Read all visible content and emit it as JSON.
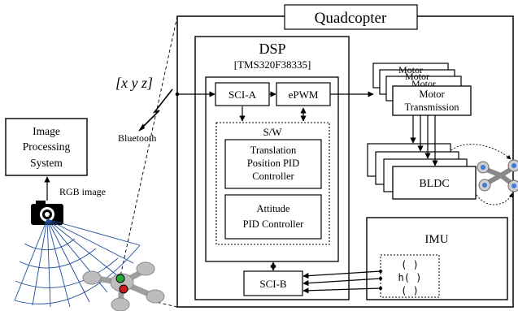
{
  "title": "Quadcopter",
  "dsp": {
    "title": "DSP",
    "model": "[TMS320F38335]",
    "sci_a": "SCI-A",
    "epwm": "ePWM",
    "sw_label": "S/W",
    "translation_controller": [
      "Translation",
      "Position PID",
      "Controller"
    ],
    "attitude_controller": [
      "Attitude",
      "PID Controller"
    ],
    "sci_b": "SCI-B"
  },
  "motor_stack": {
    "back_labels": [
      "Motor",
      "Motor",
      "Motor"
    ],
    "front_label": [
      "Motor",
      "Transmission"
    ]
  },
  "bldc": "BLDC",
  "imu": {
    "title": "IMU",
    "signals": [
      "( )",
      "h( )",
      "( )"
    ]
  },
  "image_processing": [
    "Image",
    "Processing",
    "System"
  ],
  "labels": {
    "xyz": "[x y z]",
    "bluetooth": "Bluetooth",
    "rgb_image": "RGB image"
  },
  "colors": {
    "stroke": "#000000",
    "drone_body": "#bdbdbd",
    "lens_grid": "#1f4e9c",
    "led_green": "#22aa33",
    "led_red": "#d21a1a",
    "rotor_blue": "#3a7bd5"
  }
}
